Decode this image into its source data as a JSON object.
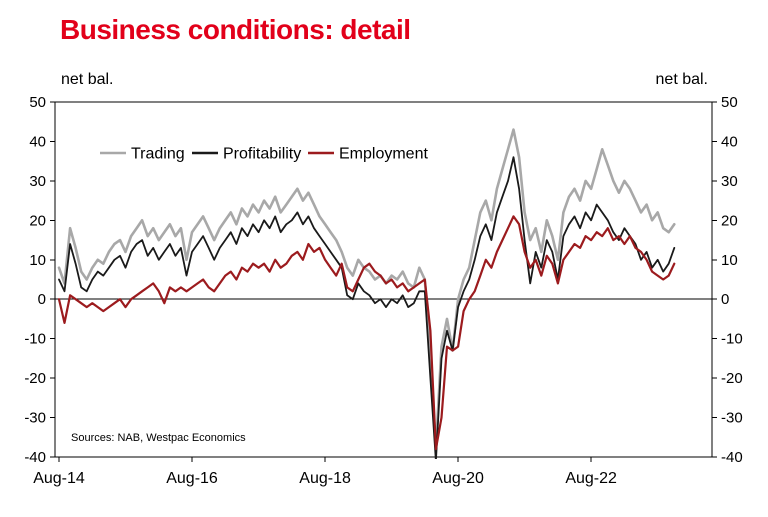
{
  "title": "Business conditions: detail",
  "colors": {
    "title": "#e2001a",
    "axis": "#000000",
    "background": "#ffffff"
  },
  "chart_data": {
    "type": "line",
    "title": "Business conditions: detail",
    "y_axis_label_left": "net bal.",
    "y_axis_label_right": "net bal.",
    "source": "Sources: NAB, Westpac Economics",
    "ylim": [
      -40,
      50
    ],
    "yticks": [
      50,
      40,
      30,
      20,
      10,
      0,
      -10,
      -20,
      -30,
      -40
    ],
    "x_tick_labels": [
      "Aug-14",
      "Aug-16",
      "Aug-18",
      "Aug-20",
      "Aug-22"
    ],
    "x_tick_months": [
      0,
      24,
      48,
      72,
      96
    ],
    "months_total": 116,
    "x_start": "Aug-14",
    "x_end": "Nov-23",
    "frequency": "monthly",
    "legend_position": "top-left-inside",
    "grid": false,
    "series": [
      {
        "name": "Trading",
        "color": "#a8a8a8",
        "width": 2.6,
        "values": [
          8,
          4,
          18,
          13,
          7,
          5,
          8,
          10,
          9,
          12,
          14,
          15,
          12,
          16,
          18,
          20,
          16,
          18,
          15,
          17,
          19,
          16,
          18,
          10,
          17,
          19,
          21,
          18,
          15,
          18,
          20,
          22,
          19,
          23,
          21,
          24,
          22,
          25,
          23,
          26,
          22,
          24,
          26,
          28,
          25,
          27,
          24,
          21,
          19,
          17,
          15,
          12,
          8,
          6,
          10,
          8,
          7,
          5,
          6,
          4,
          6,
          5,
          7,
          4,
          3,
          8,
          5,
          -15,
          -38,
          -12,
          -5,
          -13,
          0,
          5,
          8,
          15,
          22,
          25,
          20,
          28,
          33,
          38,
          43,
          36,
          22,
          15,
          18,
          12,
          20,
          16,
          10,
          22,
          26,
          28,
          25,
          30,
          28,
          33,
          38,
          34,
          30,
          27,
          30,
          28,
          25,
          22,
          24,
          20,
          22,
          18,
          17,
          19
        ]
      },
      {
        "name": "Profitability",
        "color": "#1a1a1a",
        "width": 1.8,
        "values": [
          5,
          2,
          14,
          9,
          3,
          2,
          5,
          7,
          6,
          8,
          10,
          11,
          8,
          12,
          14,
          15,
          11,
          13,
          10,
          12,
          14,
          11,
          13,
          6,
          12,
          14,
          16,
          13,
          10,
          13,
          15,
          17,
          14,
          18,
          16,
          19,
          17,
          20,
          18,
          21,
          17,
          19,
          20,
          22,
          19,
          21,
          18,
          16,
          14,
          12,
          10,
          8,
          1,
          0,
          4,
          2,
          1,
          -1,
          0,
          -2,
          0,
          -1,
          1,
          -2,
          -1,
          2,
          2,
          -20,
          -41,
          -15,
          -8,
          -13,
          -2,
          2,
          5,
          10,
          16,
          19,
          15,
          22,
          26,
          30,
          36,
          28,
          15,
          4,
          12,
          8,
          15,
          12,
          5,
          16,
          19,
          21,
          18,
          22,
          20,
          24,
          22,
          20,
          17,
          15,
          18,
          16,
          14,
          10,
          12,
          8,
          10,
          7,
          9,
          13
        ]
      },
      {
        "name": "Employment",
        "color": "#9c1b1e",
        "width": 2.2,
        "values": [
          0,
          -6,
          1,
          0,
          -1,
          -2,
          -1,
          -2,
          -3,
          -2,
          -1,
          0,
          -2,
          0,
          1,
          2,
          3,
          4,
          2,
          -1,
          3,
          2,
          3,
          2,
          3,
          4,
          5,
          3,
          2,
          4,
          6,
          7,
          5,
          8,
          7,
          9,
          8,
          9,
          7,
          10,
          8,
          9,
          11,
          12,
          10,
          14,
          12,
          13,
          10,
          8,
          6,
          9,
          3,
          2,
          5,
          8,
          9,
          7,
          6,
          4,
          5,
          3,
          4,
          2,
          3,
          4,
          5,
          -8,
          -38,
          -30,
          -12,
          -13,
          -12,
          -3,
          0,
          2,
          6,
          10,
          8,
          12,
          15,
          18,
          21,
          19,
          12,
          8,
          10,
          6,
          11,
          9,
          4,
          10,
          12,
          14,
          13,
          16,
          15,
          17,
          16,
          18,
          15,
          16,
          14,
          16,
          13,
          12,
          10,
          7,
          6,
          5,
          6,
          9
        ]
      }
    ]
  }
}
